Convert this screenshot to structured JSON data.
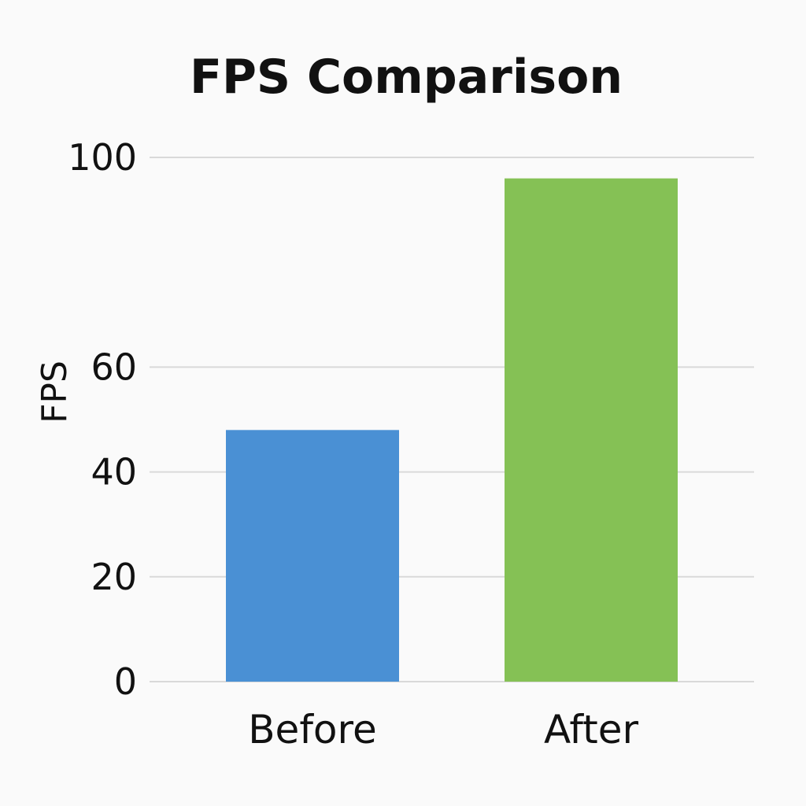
{
  "chart_data": {
    "type": "bar",
    "title": "FPS Comparison",
    "xlabel": "",
    "ylabel": "FPS",
    "categories": [
      "Before",
      "After"
    ],
    "values": [
      48,
      96
    ],
    "colors": [
      "#4a90d4",
      "#85c155"
    ],
    "yticks": [
      {
        "value": 0,
        "label": "0"
      },
      {
        "value": 20,
        "label": "20"
      },
      {
        "value": 40,
        "label": "40"
      },
      {
        "value": 60,
        "label": "60"
      },
      {
        "value": 100,
        "label": "100"
      }
    ],
    "ylim": [
      0,
      100
    ],
    "grid": true,
    "legend": false
  }
}
